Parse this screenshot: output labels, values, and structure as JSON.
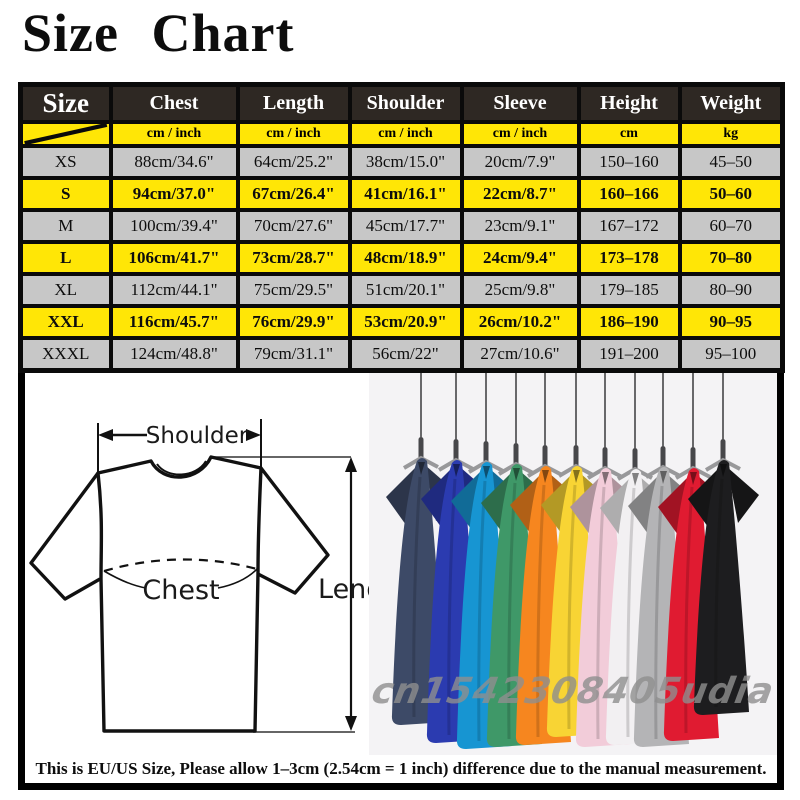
{
  "page": {
    "title": "Size Chart",
    "footer_note": "This is EU/US Size, Please allow 1–3cm (2.54cm = 1 inch) difference due to the manual measurement.",
    "watermark": "cn1542308405udia"
  },
  "size_table": {
    "columns": [
      "Size",
      "Chest",
      "Length",
      "Shoulder",
      "Sleeve",
      "Height",
      "Weight"
    ],
    "units_row": [
      "",
      "cm / inch",
      "cm / inch",
      "cm / inch",
      "cm / inch",
      "cm",
      "kg"
    ],
    "rows": [
      {
        "highlight": false,
        "cells": [
          "XS",
          "88cm/34.6\"",
          "64cm/25.2\"",
          "38cm/15.0\"",
          "20cm/7.9\"",
          "150–160",
          "45–50"
        ]
      },
      {
        "highlight": true,
        "cells": [
          "S",
          "94cm/37.0\"",
          "67cm/26.4\"",
          "41cm/16.1\"",
          "22cm/8.7\"",
          "160–166",
          "50–60"
        ]
      },
      {
        "highlight": false,
        "cells": [
          "M",
          "100cm/39.4\"",
          "70cm/27.6\"",
          "45cm/17.7\"",
          "23cm/9.1\"",
          "167–172",
          "60–70"
        ]
      },
      {
        "highlight": true,
        "cells": [
          "L",
          "106cm/41.7\"",
          "73cm/28.7\"",
          "48cm/18.9\"",
          "24cm/9.4\"",
          "173–178",
          "70–80"
        ]
      },
      {
        "highlight": false,
        "cells": [
          "XL",
          "112cm/44.1\"",
          "75cm/29.5\"",
          "51cm/20.1\"",
          "25cm/9.8\"",
          "179–185",
          "80–90"
        ]
      },
      {
        "highlight": true,
        "cells": [
          "XXL",
          "116cm/45.7\"",
          "76cm/29.9\"",
          "53cm/20.9\"",
          "26cm/10.2\"",
          "186–190",
          "90–95"
        ]
      },
      {
        "highlight": false,
        "cells": [
          "XXXL",
          "124cm/48.8\"",
          "79cm/31.1\"",
          "56cm/22\"",
          "27cm/10.6\"",
          "191–200",
          "95–100"
        ]
      }
    ],
    "colors": {
      "header_bg": "#2e2823",
      "header_text": "#ffffff",
      "highlight_bg": "#ffe606",
      "row_bg": "#c7c7c7",
      "border": "#0a0a0a"
    }
  },
  "diagram": {
    "labels": {
      "shoulder": "Shoulder",
      "chest": "Chest",
      "length": "Lengt"
    }
  },
  "shirts": {
    "colors": [
      "#3d4a67",
      "#2b3bb0",
      "#1795d2",
      "#3f9868",
      "#f6861f",
      "#f8d434",
      "#f2ccd9",
      "#f2f0f2",
      "#b4b4b6",
      "#e01b31",
      "#1d1d1f"
    ]
  }
}
